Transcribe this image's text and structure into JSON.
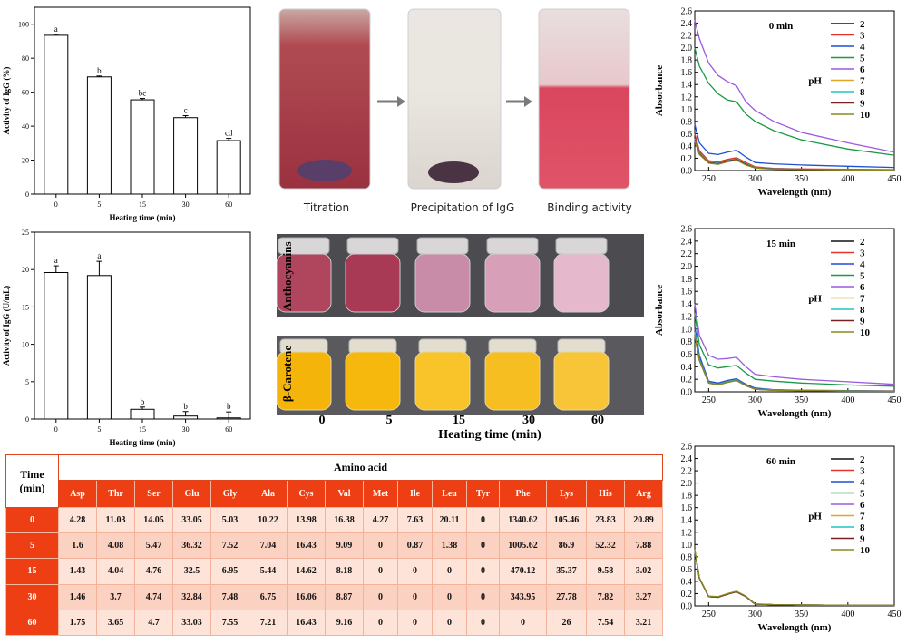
{
  "chart_data": [
    {
      "id": "bar_pct",
      "type": "bar",
      "categories": [
        "0",
        "5",
        "15",
        "30",
        "60"
      ],
      "values": [
        93.5,
        69,
        55.5,
        45,
        31.5
      ],
      "errors": [
        0.6,
        0.5,
        0.8,
        1.2,
        1.3
      ],
      "letters": [
        "a",
        "b",
        "bc",
        "c",
        "cd"
      ],
      "ylim": [
        0,
        110
      ],
      "yticks": [
        "0",
        "20",
        "40",
        "60",
        "80",
        "100"
      ],
      "xlabel": "Heating time (min)",
      "ylabel": "Activity of IgG (%)"
    },
    {
      "id": "bar_uml",
      "type": "bar",
      "categories": [
        "0",
        "5",
        "15",
        "30",
        "60"
      ],
      "values": [
        19.6,
        19.2,
        1.3,
        0.4,
        0.15
      ],
      "errors": [
        0.9,
        1.9,
        0.3,
        0.6,
        0.8
      ],
      "letters": [
        "a",
        "a",
        "b",
        "b",
        "b"
      ],
      "ylim": [
        0,
        25
      ],
      "yticks": [
        "0",
        "5",
        "10",
        "15",
        "20",
        "25"
      ],
      "xlabel": "Heating time (min)",
      "ylabel": "Activity of IgG (U/mL)"
    },
    {
      "id": "abs_0",
      "type": "line",
      "title": "0 min",
      "x": [
        235,
        240,
        250,
        260,
        270,
        280,
        290,
        300,
        320,
        350,
        400,
        450
      ],
      "xlim": [
        235,
        450
      ],
      "ylim": [
        0,
        2.6
      ],
      "xticks": [
        "250",
        "300",
        "350",
        "400",
        "450"
      ],
      "yticks": [
        "0.0",
        "0.2",
        "0.4",
        "0.6",
        "0.8",
        "1.0",
        "1.2",
        "1.4",
        "1.6",
        "1.8",
        "2.0",
        "2.2",
        "2.4",
        "2.6"
      ],
      "xlabel": "Wavelength (nm)",
      "ylabel": "Absorbance",
      "legend_title": "pH",
      "series": [
        {
          "name": "2",
          "color": "#111111",
          "values": [
            0.55,
            0.3,
            0.15,
            0.13,
            0.17,
            0.2,
            0.12,
            0.05,
            0.03,
            0.02,
            0.015,
            0.01
          ]
        },
        {
          "name": "3",
          "color": "#e8322c",
          "values": [
            0.6,
            0.32,
            0.16,
            0.14,
            0.18,
            0.21,
            0.13,
            0.06,
            0.035,
            0.025,
            0.02,
            0.015
          ]
        },
        {
          "name": "4",
          "color": "#1f4fd6",
          "values": [
            0.75,
            0.45,
            0.28,
            0.26,
            0.3,
            0.33,
            0.22,
            0.13,
            0.11,
            0.09,
            0.07,
            0.05
          ]
        },
        {
          "name": "5",
          "color": "#1a9a44",
          "values": [
            2.0,
            1.7,
            1.42,
            1.25,
            1.15,
            1.12,
            0.92,
            0.8,
            0.65,
            0.5,
            0.35,
            0.25
          ]
        },
        {
          "name": "6",
          "color": "#9a5ae0",
          "values": [
            2.45,
            2.15,
            1.75,
            1.55,
            1.45,
            1.38,
            1.12,
            0.98,
            0.8,
            0.62,
            0.45,
            0.3
          ]
        },
        {
          "name": "7",
          "color": "#e0a820",
          "values": [
            0.5,
            0.28,
            0.14,
            0.12,
            0.16,
            0.19,
            0.11,
            0.05,
            0.03,
            0.02,
            0.015,
            0.01
          ]
        },
        {
          "name": "8",
          "color": "#22c3c3",
          "values": [
            0.52,
            0.29,
            0.14,
            0.12,
            0.16,
            0.19,
            0.11,
            0.05,
            0.03,
            0.02,
            0.015,
            0.01
          ]
        },
        {
          "name": "9",
          "color": "#7a1f24",
          "values": [
            0.5,
            0.27,
            0.13,
            0.11,
            0.15,
            0.18,
            0.1,
            0.045,
            0.025,
            0.02,
            0.012,
            0.01
          ]
        },
        {
          "name": "10",
          "color": "#8a8a20",
          "values": [
            0.48,
            0.26,
            0.12,
            0.1,
            0.14,
            0.17,
            0.09,
            0.04,
            0.02,
            0.015,
            0.01,
            0.01
          ]
        }
      ]
    },
    {
      "id": "abs_15",
      "type": "line",
      "title": "15 min",
      "x": [
        235,
        240,
        250,
        260,
        270,
        280,
        290,
        300,
        320,
        350,
        400,
        450
      ],
      "xlim": [
        235,
        450
      ],
      "ylim": [
        0,
        2.6
      ],
      "xticks": [
        "250",
        "300",
        "350",
        "400",
        "450"
      ],
      "yticks": [
        "0.0",
        "0.2",
        "0.4",
        "0.6",
        "0.8",
        "1.0",
        "1.2",
        "1.4",
        "1.6",
        "1.8",
        "2.0",
        "2.2",
        "2.4",
        "2.6"
      ],
      "xlabel": "Wavelength (nm)",
      "ylabel": "Absorbance",
      "legend_title": "pH",
      "series": [
        {
          "name": "2",
          "color": "#111111",
          "values": [
            1.0,
            0.55,
            0.16,
            0.13,
            0.17,
            0.2,
            0.11,
            0.05,
            0.03,
            0.02,
            0.015,
            0.01
          ]
        },
        {
          "name": "3",
          "color": "#e8322c",
          "values": [
            1.0,
            0.55,
            0.16,
            0.13,
            0.17,
            0.2,
            0.11,
            0.05,
            0.03,
            0.02,
            0.015,
            0.01
          ]
        },
        {
          "name": "4",
          "color": "#1f4fd6",
          "values": [
            1.05,
            0.58,
            0.17,
            0.14,
            0.18,
            0.21,
            0.12,
            0.06,
            0.035,
            0.025,
            0.02,
            0.015
          ]
        },
        {
          "name": "5",
          "color": "#1a9a44",
          "values": [
            1.25,
            0.75,
            0.43,
            0.38,
            0.4,
            0.42,
            0.3,
            0.2,
            0.17,
            0.14,
            0.11,
            0.09
          ]
        },
        {
          "name": "6",
          "color": "#9a5ae0",
          "values": [
            1.4,
            0.9,
            0.58,
            0.52,
            0.53,
            0.55,
            0.4,
            0.28,
            0.24,
            0.2,
            0.16,
            0.12
          ]
        },
        {
          "name": "7",
          "color": "#e0a820",
          "values": [
            0.95,
            0.52,
            0.15,
            0.12,
            0.16,
            0.19,
            0.1,
            0.045,
            0.03,
            0.02,
            0.015,
            0.01
          ]
        },
        {
          "name": "8",
          "color": "#22c3c3",
          "values": [
            0.95,
            0.52,
            0.15,
            0.12,
            0.16,
            0.19,
            0.1,
            0.045,
            0.03,
            0.02,
            0.015,
            0.01
          ]
        },
        {
          "name": "9",
          "color": "#7a1f24",
          "values": [
            0.9,
            0.5,
            0.14,
            0.11,
            0.15,
            0.18,
            0.1,
            0.04,
            0.025,
            0.02,
            0.012,
            0.01
          ]
        },
        {
          "name": "10",
          "color": "#8a8a20",
          "values": [
            0.9,
            0.5,
            0.14,
            0.11,
            0.15,
            0.18,
            0.1,
            0.04,
            0.025,
            0.02,
            0.012,
            0.01
          ]
        }
      ]
    },
    {
      "id": "abs_60",
      "type": "line",
      "title": "60 min",
      "x": [
        235,
        240,
        250,
        260,
        270,
        280,
        290,
        300,
        320,
        350,
        400,
        450
      ],
      "xlim": [
        235,
        450
      ],
      "ylim": [
        0,
        2.6
      ],
      "xticks": [
        "250",
        "300",
        "350",
        "400",
        "450"
      ],
      "yticks": [
        "0.0",
        "0.2",
        "0.4",
        "0.6",
        "0.8",
        "1.0",
        "1.2",
        "1.4",
        "1.6",
        "1.8",
        "2.0",
        "2.2",
        "2.4",
        "2.6"
      ],
      "xlabel": "Wavelength (nm)",
      "ylabel": "Absorbance",
      "legend_title": "pH",
      "series": [
        {
          "name": "2",
          "color": "#111111",
          "values": [
            0.9,
            0.45,
            0.15,
            0.14,
            0.19,
            0.23,
            0.15,
            0.03,
            0.02,
            0.015,
            0.01,
            0.01
          ]
        },
        {
          "name": "3",
          "color": "#e8322c",
          "values": [
            0.9,
            0.45,
            0.15,
            0.14,
            0.19,
            0.23,
            0.15,
            0.03,
            0.02,
            0.015,
            0.01,
            0.01
          ]
        },
        {
          "name": "4",
          "color": "#1f4fd6",
          "values": [
            0.9,
            0.45,
            0.15,
            0.14,
            0.19,
            0.23,
            0.15,
            0.03,
            0.02,
            0.015,
            0.01,
            0.01
          ]
        },
        {
          "name": "5",
          "color": "#1a9a44",
          "values": [
            0.9,
            0.45,
            0.15,
            0.14,
            0.19,
            0.23,
            0.15,
            0.03,
            0.02,
            0.015,
            0.01,
            0.01
          ]
        },
        {
          "name": "6",
          "color": "#9a5ae0",
          "values": [
            0.9,
            0.45,
            0.15,
            0.14,
            0.19,
            0.23,
            0.15,
            0.03,
            0.02,
            0.015,
            0.01,
            0.01
          ]
        },
        {
          "name": "7",
          "color": "#e0a820",
          "values": [
            0.9,
            0.45,
            0.15,
            0.14,
            0.19,
            0.23,
            0.15,
            0.03,
            0.02,
            0.015,
            0.01,
            0.01
          ]
        },
        {
          "name": "8",
          "color": "#22c3c3",
          "values": [
            0.9,
            0.45,
            0.15,
            0.14,
            0.19,
            0.23,
            0.15,
            0.03,
            0.02,
            0.015,
            0.01,
            0.01
          ]
        },
        {
          "name": "9",
          "color": "#7a1f24",
          "values": [
            0.9,
            0.45,
            0.15,
            0.14,
            0.19,
            0.23,
            0.15,
            0.03,
            0.02,
            0.015,
            0.01,
            0.01
          ]
        },
        {
          "name": "10",
          "color": "#8a8a20",
          "values": [
            0.92,
            0.46,
            0.16,
            0.15,
            0.2,
            0.24,
            0.16,
            0.035,
            0.02,
            0.015,
            0.01,
            0.01
          ]
        }
      ]
    },
    {
      "id": "amino_table",
      "type": "table",
      "corner_label": "Time\n(min)",
      "group_header": "Amino acid",
      "columns": [
        "Asp",
        "Thr",
        "Ser",
        "Glu",
        "Gly",
        "Ala",
        "Cys",
        "Val",
        "Met",
        "Ile",
        "Leu",
        "Tyr",
        "Phe",
        "Lys",
        "His",
        "Arg"
      ],
      "rows": [
        {
          "time": "0",
          "values": [
            "4.28",
            "11.03",
            "14.05",
            "33.05",
            "5.03",
            "10.22",
            "13.98",
            "16.38",
            "4.27",
            "7.63",
            "20.11",
            "0",
            "1340.62",
            "105.46",
            "23.83",
            "20.89"
          ]
        },
        {
          "time": "5",
          "values": [
            "1.6",
            "4.08",
            "5.47",
            "36.32",
            "7.52",
            "7.04",
            "16.43",
            "9.09",
            "0",
            "0.87",
            "1.38",
            "0",
            "1005.62",
            "86.9",
            "52.32",
            "7.88"
          ]
        },
        {
          "time": "15",
          "values": [
            "1.43",
            "4.04",
            "4.76",
            "32.5",
            "6.95",
            "5.44",
            "14.62",
            "8.18",
            "0",
            "0",
            "0",
            "0",
            "470.12",
            "35.37",
            "9.58",
            "3.02"
          ]
        },
        {
          "time": "30",
          "values": [
            "1.46",
            "3.7",
            "4.74",
            "32.84",
            "7.48",
            "6.75",
            "16.06",
            "8.87",
            "0",
            "0",
            "0",
            "0",
            "343.95",
            "27.78",
            "7.82",
            "3.27"
          ]
        },
        {
          "time": "60",
          "values": [
            "1.75",
            "3.65",
            "4.7",
            "33.03",
            "7.55",
            "7.21",
            "16.43",
            "9.16",
            "0",
            "0",
            "0",
            "0",
            "0",
            "26",
            "7.54",
            "3.21"
          ]
        }
      ]
    }
  ],
  "photos": {
    "tubes_captions": [
      "Titration",
      "Precipitation of IgG",
      "Binding activity"
    ],
    "vials_labels": {
      "anthocyanins": "Anthocyanins",
      "carotene": "β-Carotene"
    },
    "vials_times": [
      "0",
      "5",
      "15",
      "30",
      "60"
    ],
    "vials_axis_label": "Heating time (min)",
    "anthocyanin_colors": [
      "#b0465e",
      "#a83a55",
      "#c98ca8",
      "#d8a0b8",
      "#e5b8cc"
    ],
    "carotene_colors": [
      "#f5b40a",
      "#f6b80c",
      "#f8c42a",
      "#f7be22",
      "#f8c438"
    ]
  }
}
